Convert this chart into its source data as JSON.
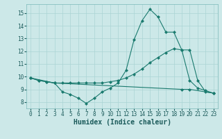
{
  "xlabel": "Humidex (Indice chaleur)",
  "xlim": [
    -0.5,
    23.5
  ],
  "ylim": [
    7.5,
    15.7
  ],
  "yticks": [
    8,
    9,
    10,
    11,
    12,
    13,
    14,
    15
  ],
  "xticks": [
    0,
    1,
    2,
    3,
    4,
    5,
    6,
    7,
    8,
    9,
    10,
    11,
    12,
    13,
    14,
    15,
    16,
    17,
    18,
    19,
    20,
    21,
    22,
    23
  ],
  "background_color": "#cce8e8",
  "line_color": "#1a7a6e",
  "grid_color": "#aad4d4",
  "line1_x": [
    0,
    1,
    2,
    3,
    4,
    5,
    6,
    7,
    8,
    9,
    10,
    11,
    12,
    13,
    14,
    15,
    16,
    17,
    18,
    19,
    20,
    21,
    22,
    23
  ],
  "line1_y": [
    9.9,
    9.7,
    9.6,
    9.5,
    8.8,
    8.6,
    8.3,
    7.9,
    8.3,
    8.8,
    9.1,
    9.5,
    10.5,
    12.9,
    14.4,
    15.3,
    14.7,
    13.5,
    13.5,
    12.1,
    12.1,
    9.7,
    8.8,
    8.7
  ],
  "line2_x": [
    0,
    1,
    2,
    3,
    4,
    5,
    6,
    7,
    8,
    9,
    10,
    11,
    12,
    13,
    14,
    15,
    16,
    17,
    18,
    19,
    20,
    21,
    22,
    23
  ],
  "line2_y": [
    9.9,
    9.7,
    9.6,
    9.5,
    9.5,
    9.5,
    9.5,
    9.5,
    9.5,
    9.5,
    9.6,
    9.7,
    9.9,
    10.2,
    10.6,
    11.1,
    11.5,
    11.9,
    12.2,
    12.1,
    9.7,
    9.1,
    8.9,
    8.7
  ],
  "line3_x": [
    0,
    3,
    19,
    20,
    23
  ],
  "line3_y": [
    9.9,
    9.5,
    9.0,
    9.0,
    8.7
  ]
}
